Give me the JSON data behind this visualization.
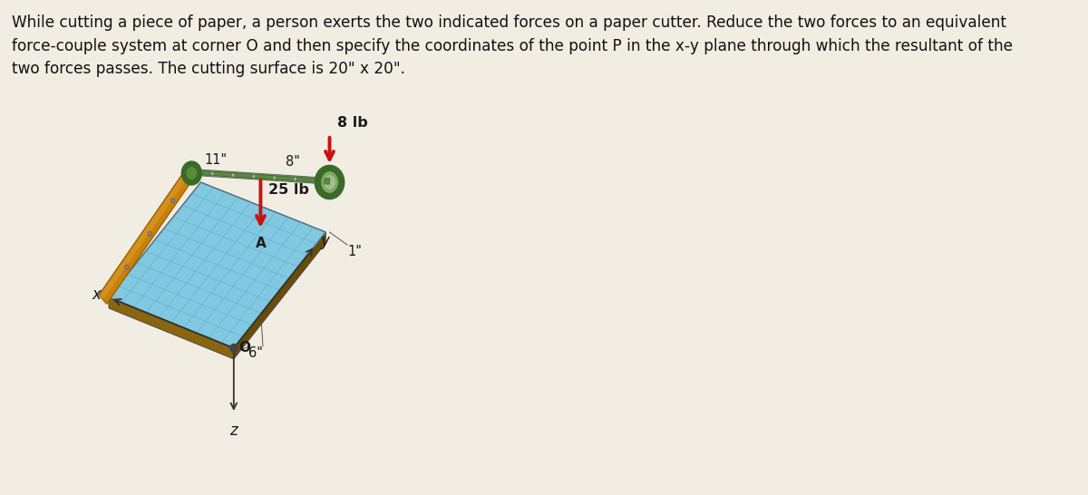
{
  "title_text": "While cutting a piece of paper, a person exerts the two indicated forces on a paper cutter. Reduce the two forces to an equivalent\nforce-couple system at corner O and then specify the coordinates of the point P in the x-y plane through which the resultant of the\ntwo forces passes. The cutting surface is 20\" x 20\".",
  "bg_color": "#f2ede3",
  "title_fontsize": 12.2,
  "title_color": "#111111",
  "force1_label": "25 lb",
  "force2_label": "8 lb",
  "dim1_label": "11\"",
  "dim2_label": "8\"",
  "dim3_label": "6\"",
  "dim4_label": "1\"",
  "label_A": "A",
  "label_O": "O",
  "label_x": "x",
  "label_y": "y",
  "label_z": "z",
  "cutting_surface_color": "#82c8e0",
  "grid_color": "#55aac8",
  "wood_color": "#c8820a",
  "wood_dark": "#9a6208",
  "wood_light": "#e0a030",
  "arm_green_dark": "#3a6a2a",
  "arm_green_mid": "#5a8a3a",
  "arm_green_light": "#7aaa5a",
  "arm_metal": "#909890",
  "arrow_color": "#cc1111",
  "border_dark": "#2a2a2a",
  "hinge_dark": "#2a5a1a",
  "brown_side": "#8B6410",
  "brown_side2": "#6a4c08",
  "board_edge_color": "#4a4a4a",
  "small_dot_color": "#444444",
  "axis_color": "#333333",
  "dim_line_color": "#555555",
  "text_color": "#1a1a1a"
}
